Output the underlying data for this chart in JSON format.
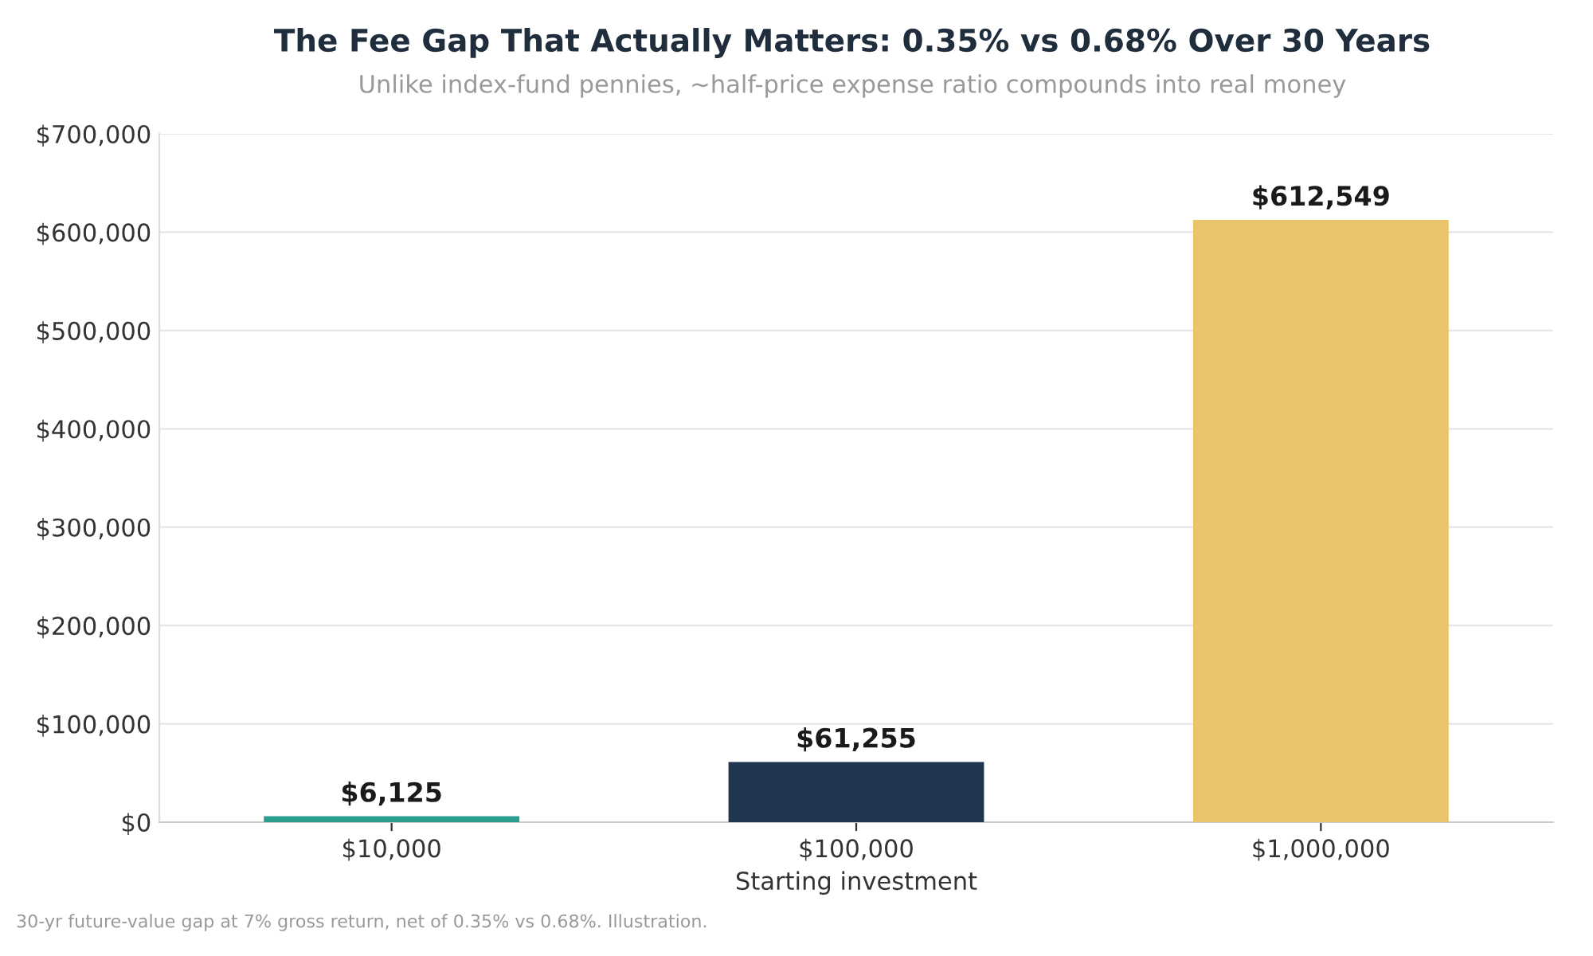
{
  "chart_data": {
    "type": "bar",
    "title": "The Fee Gap That Actually Matters: 0.35% vs 0.68% Over 30 Years",
    "subtitle": "Unlike index-fund pennies, ~half-price expense ratio compounds into real money",
    "xlabel": "Starting investment",
    "categories": [
      "$10,000",
      "$100,000",
      "$1,000,000"
    ],
    "values": [
      6125,
      61255,
      612549
    ],
    "colors": [
      "#2a9d8f",
      "#1f3550",
      "#e9c46a"
    ],
    "value_labels": [
      "$6,125",
      "$61,255",
      "$612,549"
    ],
    "ylim": [
      0,
      700000
    ],
    "yticks": [
      {
        "value": 0,
        "label": "$0"
      },
      {
        "value": 100000,
        "label": "$100,000"
      },
      {
        "value": 200000,
        "label": "$200,000"
      },
      {
        "value": 300000,
        "label": "$300,000"
      },
      {
        "value": 400000,
        "label": "$400,000"
      },
      {
        "value": 500000,
        "label": "$500,000"
      },
      {
        "value": 600000,
        "label": "$600,000"
      },
      {
        "value": 700000,
        "label": "$700,000"
      }
    ],
    "grid": "y",
    "annotations": [
      "30-yr future-value gap at 7% gross return, net of 0.35% vs 0.68%. Illustration."
    ]
  }
}
